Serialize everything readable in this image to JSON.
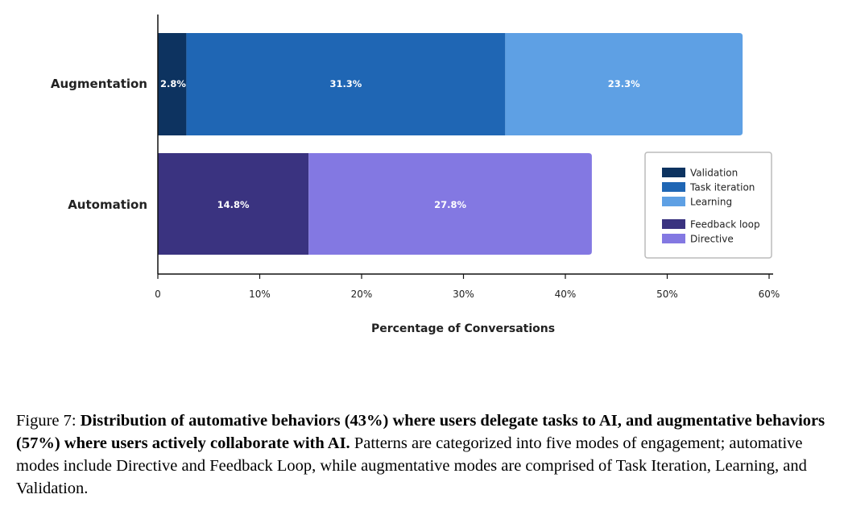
{
  "chart_data": {
    "type": "bar",
    "orientation": "horizontal",
    "stacked": true,
    "categories": [
      "Augmentation",
      "Automation"
    ],
    "series": [
      {
        "name": "Validation",
        "category": "Augmentation",
        "value": 2.8,
        "label": "2.8%",
        "color": "#0d3360"
      },
      {
        "name": "Task iteration",
        "category": "Augmentation",
        "value": 31.3,
        "label": "31.3%",
        "color": "#1f66b4"
      },
      {
        "name": "Learning",
        "category": "Augmentation",
        "value": 23.3,
        "label": "23.3%",
        "color": "#5ea0e4"
      },
      {
        "name": "Feedback loop",
        "category": "Automation",
        "value": 14.8,
        "label": "14.8%",
        "color": "#3a3380"
      },
      {
        "name": "Directive",
        "category": "Automation",
        "value": 27.8,
        "label": "27.8%",
        "color": "#8378e2"
      }
    ],
    "xlim": [
      0,
      60
    ],
    "xticks": [
      0,
      10,
      20,
      30,
      40,
      50,
      60
    ],
    "xtick_labels": [
      "0",
      "10%",
      "20%",
      "30%",
      "40%",
      "50%",
      "60%"
    ],
    "xlabel": "Percentage of Conversations",
    "ylabel": "",
    "legend": {
      "position": "right",
      "items": [
        {
          "name": "Validation",
          "color": "#0d3360"
        },
        {
          "name": "Task iteration",
          "color": "#1f66b4"
        },
        {
          "name": "Learning",
          "color": "#5ea0e4"
        },
        {
          "name": "Feedback loop",
          "color": "#3a3380"
        },
        {
          "name": "Directive",
          "color": "#8378e2"
        }
      ]
    }
  },
  "caption": {
    "prefix": "Figure 7: ",
    "bold": "Distribution of automative behaviors (43%) where users delegate tasks to AI, and augmentative behaviors (57%) where users actively collaborate with AI.",
    "rest": " Patterns are categorized into five modes of engagement; automative modes include Directive and Feedback Loop, while augmentative modes are comprised of Task Iteration, Learning, and Validation."
  }
}
